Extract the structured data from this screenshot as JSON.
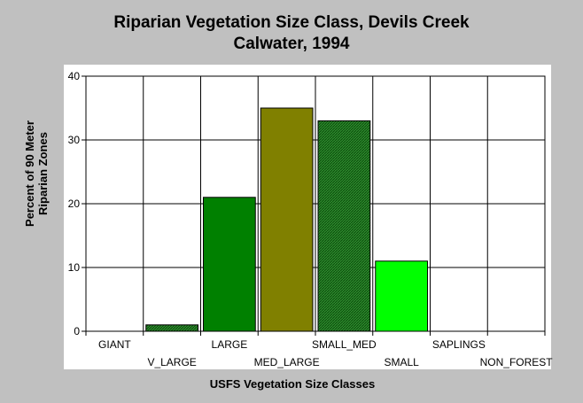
{
  "chart_data": {
    "type": "bar",
    "title_lines": [
      "Riparian Vegetation Size Class, Devils Creek",
      "Calwater, 1994"
    ],
    "xlabel": "USFS Vegetation Size Classes",
    "ylabel_lines": [
      "Percent of 90 Meter",
      "Riparian Zones"
    ],
    "ylim": [
      0,
      40
    ],
    "yticks": [
      0,
      10,
      20,
      30,
      40
    ],
    "grid": true,
    "categories": [
      "GIANT",
      "V_LARGE",
      "LARGE",
      "MED_LARGE",
      "SMALL_MED",
      "SMALL",
      "SAPLINGS",
      "NON_FOREST"
    ],
    "values": [
      0,
      1,
      21,
      35,
      33,
      11,
      0,
      0
    ],
    "bar_colors": [
      "#006400",
      "#1e6e1e",
      "#008000",
      "#808000",
      "#2e8b2e",
      "#00ff00",
      "#00c000",
      "#008000"
    ],
    "bar_hatched": [
      false,
      true,
      false,
      false,
      true,
      false,
      false,
      false
    ],
    "plot_background": "#ffffff",
    "page_background": "#c0c0c0"
  }
}
